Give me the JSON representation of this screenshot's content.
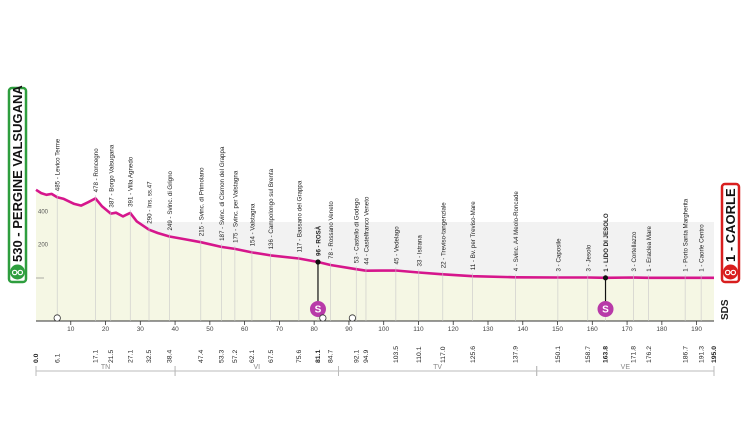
{
  "chart_data": {
    "type": "area",
    "x_unit": "km",
    "xlim": [
      0,
      195
    ],
    "ylim": [
      0,
      800
    ],
    "y_tick_labels": [
      "200",
      "400"
    ],
    "x_tick_labels": [
      "10",
      "20",
      "30",
      "40",
      "50",
      "60",
      "70",
      "80",
      "90",
      "100",
      "110",
      "120",
      "130",
      "140",
      "150",
      "160",
      "170",
      "180",
      "190"
    ],
    "start": {
      "label": "530 - PERGINE VALSUGANA",
      "color": "#2e9e3e"
    },
    "finish": {
      "label": "1 - CAORLE",
      "color": "#d81e1e"
    },
    "profile_color": "#d6168c",
    "fill_color": "#f5f7e4",
    "profile": [
      {
        "x": 0,
        "y": 530
      },
      {
        "x": 1.5,
        "y": 510
      },
      {
        "x": 3,
        "y": 500
      },
      {
        "x": 4.5,
        "y": 505
      },
      {
        "x": 6.1,
        "y": 485
      },
      {
        "x": 8,
        "y": 475
      },
      {
        "x": 11,
        "y": 445
      },
      {
        "x": 13,
        "y": 435
      },
      {
        "x": 15,
        "y": 455
      },
      {
        "x": 17.1,
        "y": 478
      },
      {
        "x": 19,
        "y": 430
      },
      {
        "x": 21.5,
        "y": 387
      },
      {
        "x": 23,
        "y": 392
      },
      {
        "x": 25,
        "y": 370
      },
      {
        "x": 27.1,
        "y": 391
      },
      {
        "x": 29,
        "y": 340
      },
      {
        "x": 32.5,
        "y": 290
      },
      {
        "x": 35,
        "y": 270
      },
      {
        "x": 38.4,
        "y": 249
      },
      {
        "x": 43,
        "y": 232
      },
      {
        "x": 47.4,
        "y": 215
      },
      {
        "x": 53.3,
        "y": 187
      },
      {
        "x": 57.2,
        "y": 175
      },
      {
        "x": 62.1,
        "y": 154
      },
      {
        "x": 67.5,
        "y": 136
      },
      {
        "x": 75.6,
        "y": 117
      },
      {
        "x": 81.1,
        "y": 96
      },
      {
        "x": 84.7,
        "y": 78
      },
      {
        "x": 92.1,
        "y": 53
      },
      {
        "x": 94.9,
        "y": 44
      },
      {
        "x": 103.5,
        "y": 45
      },
      {
        "x": 110.1,
        "y": 33
      },
      {
        "x": 117,
        "y": 22
      },
      {
        "x": 125.6,
        "y": 11
      },
      {
        "x": 137.9,
        "y": 4
      },
      {
        "x": 150.1,
        "y": 3
      },
      {
        "x": 158.7,
        "y": 3
      },
      {
        "x": 163.8,
        "y": 1
      },
      {
        "x": 171.8,
        "y": 3
      },
      {
        "x": 176.2,
        "y": 1
      },
      {
        "x": 186.7,
        "y": 1
      },
      {
        "x": 191.3,
        "y": 1
      },
      {
        "x": 195,
        "y": 1
      }
    ],
    "waypoints": [
      {
        "km": "6.1",
        "label": "485 - Levico Terme"
      },
      {
        "km": "17.1",
        "label": "478 - Roncegno"
      },
      {
        "km": "21.5",
        "label": "387 - Borgo Valsugana"
      },
      {
        "km": "27.1",
        "label": "391 - Villa Agnedo"
      },
      {
        "km": "32.5",
        "label": "290 - Ins. ss.47"
      },
      {
        "km": "38.4",
        "label": "249 - Svinc. di Grigno"
      },
      {
        "km": "47.4",
        "label": "215 - Svinc. di Primolano"
      },
      {
        "km": "53.3",
        "label": "187 - Svinc. di Cismon del Grappa"
      },
      {
        "km": "57.2",
        "label": "175 - Svinc. per Valstagna"
      },
      {
        "km": "62.1",
        "label": "154 - Valstagna"
      },
      {
        "km": "67.5",
        "label": "136 - Campolongo sul Brenta"
      },
      {
        "km": "75.6",
        "label": "117 - Bassano del Grappa"
      },
      {
        "km": "81.1",
        "label": "96 - ROSÀ",
        "bold": true
      },
      {
        "km": "84.7",
        "label": "78 - Rossano Veneto"
      },
      {
        "km": "92.1",
        "label": "53 - Castello di Godego"
      },
      {
        "km": "94.9",
        "label": "44 - Castelfranco Veneto"
      },
      {
        "km": "103.5",
        "label": "45 - Vedelago"
      },
      {
        "km": "110.1",
        "label": "33 - Istrana"
      },
      {
        "km": "117.0",
        "label": "22 - Treviso-tangenziale"
      },
      {
        "km": "125.6",
        "label": "11 - Bv. per Treviso-Mare"
      },
      {
        "km": "137.9",
        "label": "4 - Svinc. A4 Meolo-Roncade"
      },
      {
        "km": "150.1",
        "label": "3 - Caposile"
      },
      {
        "km": "158.7",
        "label": "3 - Jesolo"
      },
      {
        "km": "163.8",
        "label": "1 - LIDO DI JESOLO",
        "bold": true
      },
      {
        "km": "171.8",
        "label": "3 - Cortellazzo"
      },
      {
        "km": "176.2",
        "label": "1 - Eraclea Mare"
      },
      {
        "km": "186.7",
        "label": "1 - Porto Santa Margherita"
      },
      {
        "km": "191.3",
        "label": "1 - Caorle Centro"
      },
      {
        "km": "0.0",
        "label": ""
      },
      {
        "km": "195.0",
        "label": ""
      }
    ],
    "sprints": [
      {
        "x": 81.1,
        "symbol": "S"
      },
      {
        "x": 163.8,
        "symbol": "S"
      }
    ],
    "feed_zones": [
      {
        "x": 6.1
      },
      {
        "x": 82.5
      },
      {
        "x": 91.0
      }
    ],
    "regions": [
      {
        "name": "TN",
        "from": 0,
        "to": 40
      },
      {
        "name": "VI",
        "from": 40,
        "to": 87
      },
      {
        "name": "TV",
        "from": 87,
        "to": 144
      },
      {
        "name": "VE",
        "from": 144,
        "to": 195
      }
    ],
    "sds_label": "SDS",
    "grid": false
  }
}
